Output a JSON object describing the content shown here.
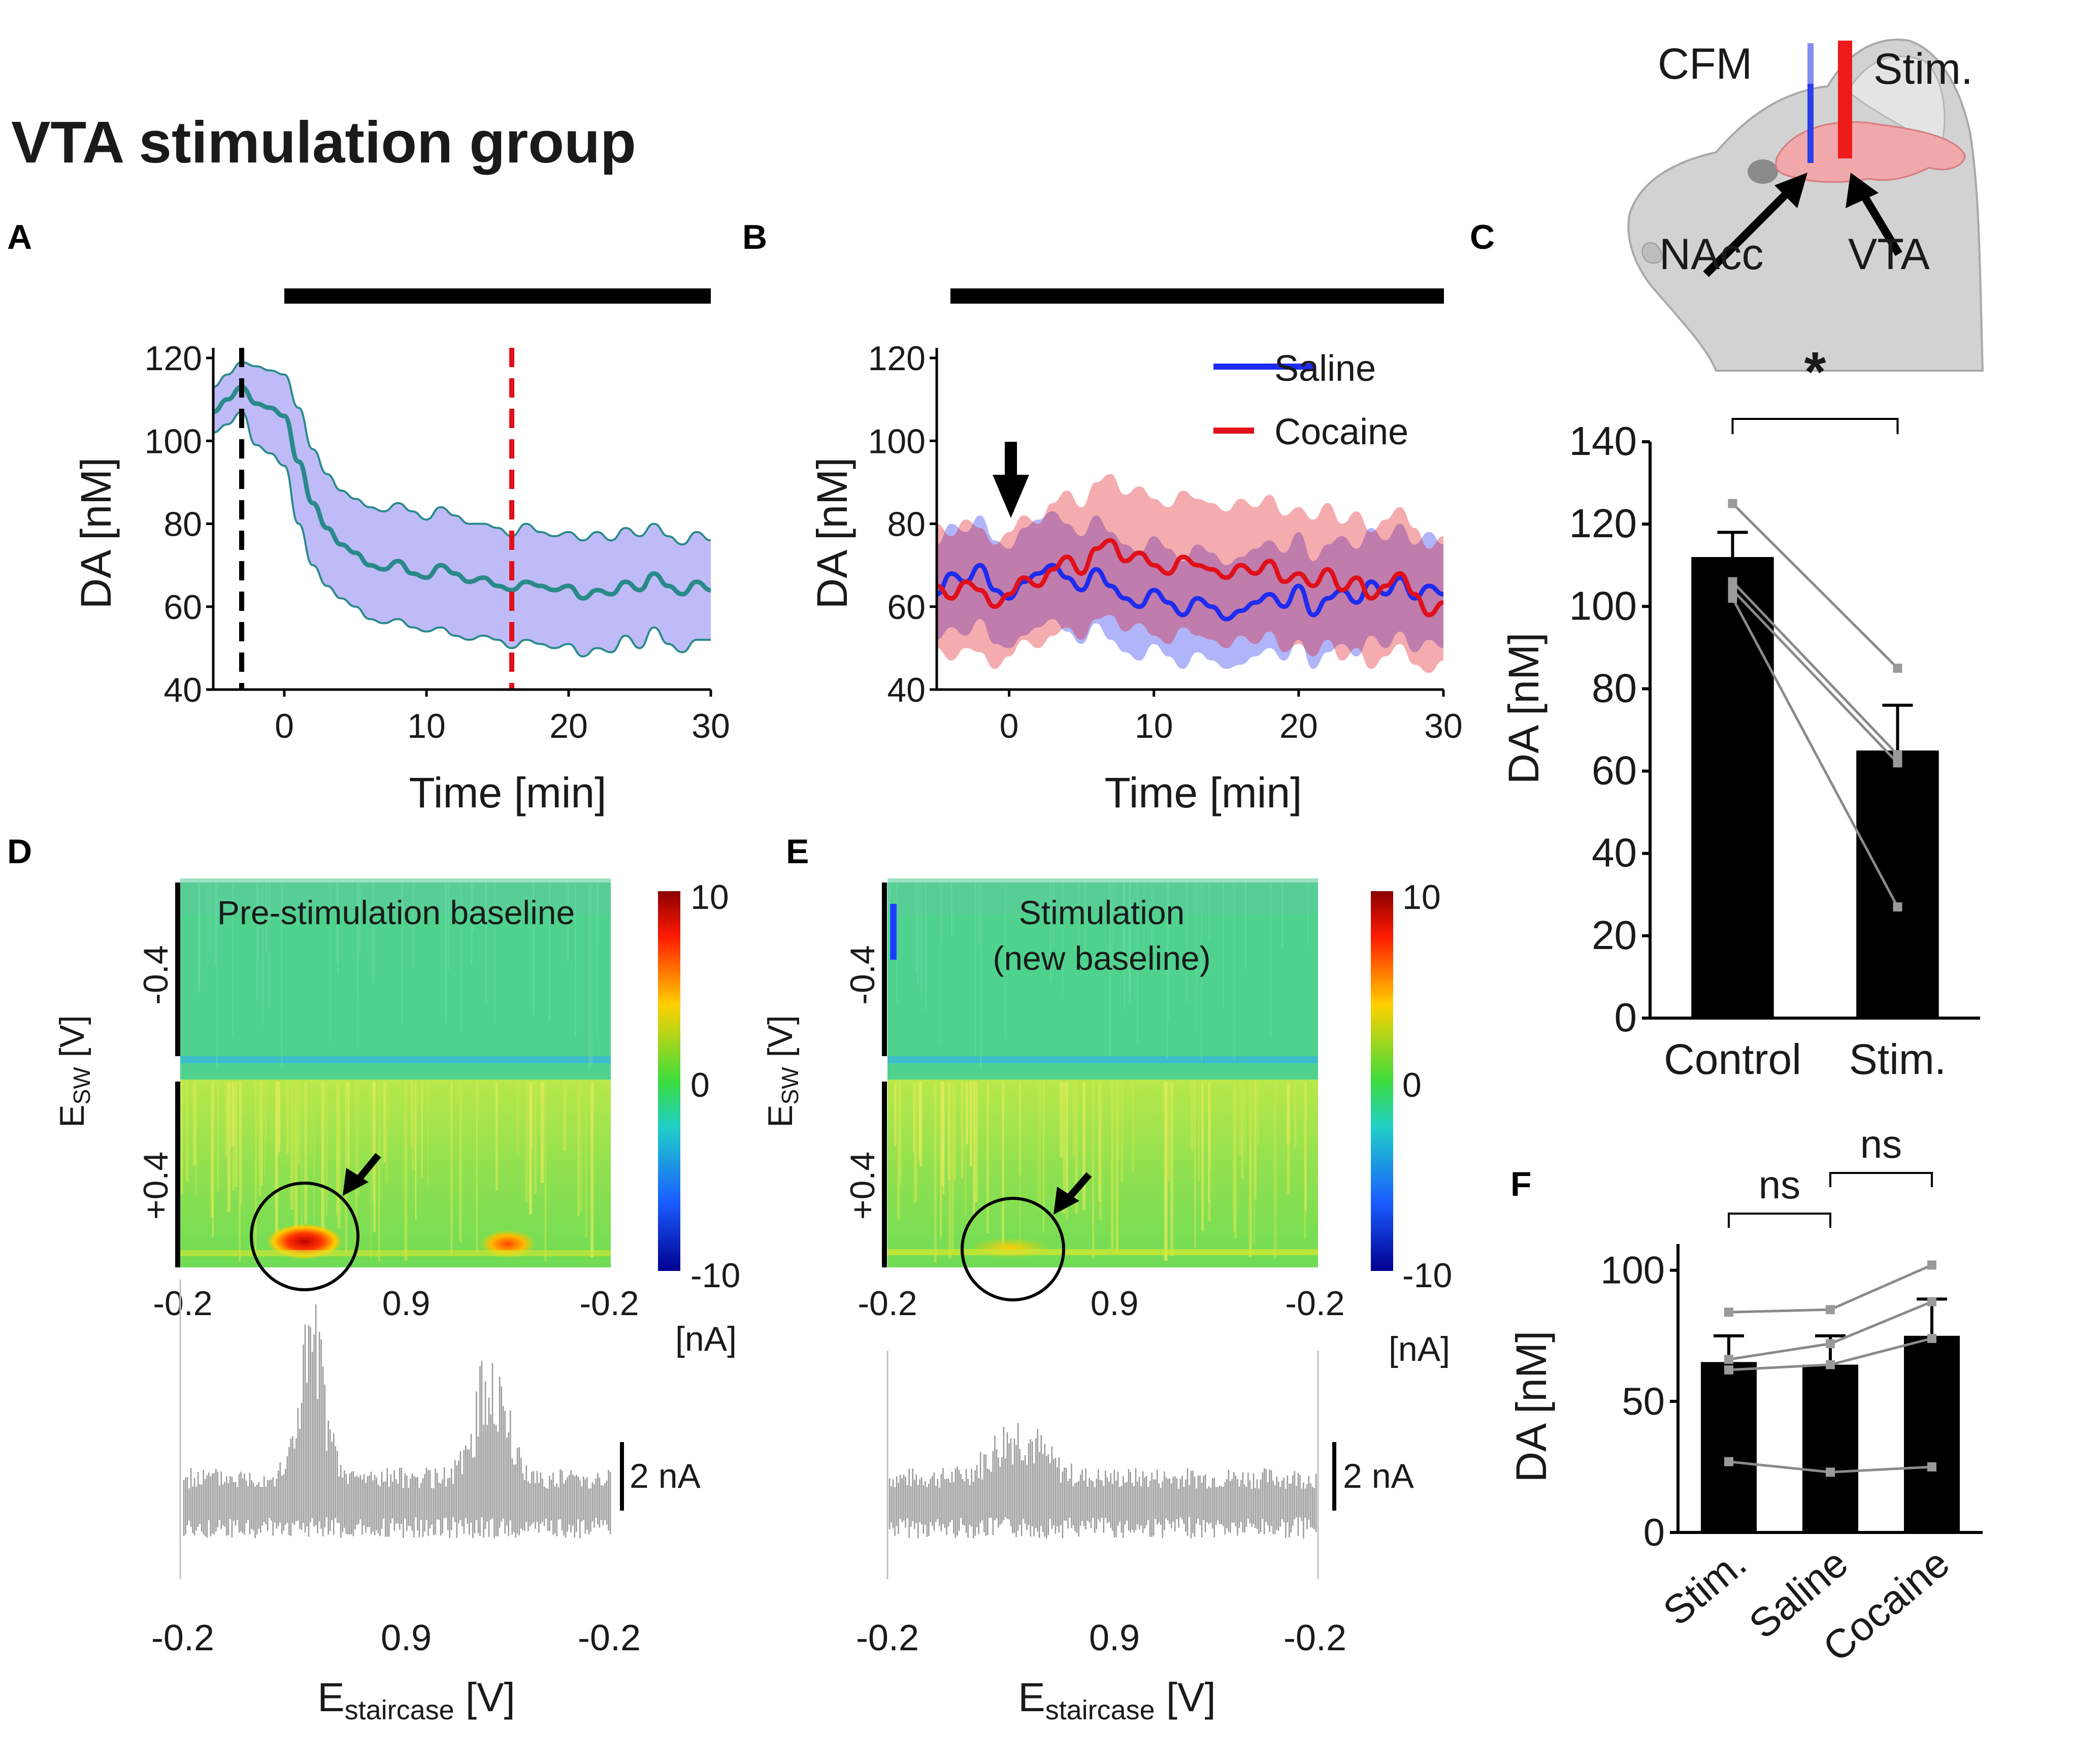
{
  "figure": {
    "title": "VTA stimulation group",
    "colors": {
      "teal": "#2a8a8a",
      "purple_fill": "#a9a4f5",
      "blue": "#1e2cf0",
      "red": "#e0101a",
      "black": "#000000",
      "grey": "#9a9a9a"
    }
  },
  "schematic": {
    "label_cfm": "CFM",
    "label_stim": "Stim.",
    "label_nacc": "NAcc",
    "label_vta": "VTA"
  },
  "panels": {
    "A": "A",
    "B": "B",
    "C": "C",
    "D": "D",
    "E": "E",
    "F": "F"
  },
  "chart_data": [
    {
      "panel": "A",
      "type": "line",
      "xlabel": "Time [min]",
      "ylabel": "DA [nM]",
      "xlim": [
        -5,
        30
      ],
      "ylim": [
        40,
        120
      ],
      "xticks": [
        0,
        10,
        20,
        30
      ],
      "yticks": [
        40,
        60,
        80,
        100,
        120
      ],
      "vlines": [
        {
          "x": -3,
          "color": "#000000",
          "style": "dashed"
        },
        {
          "x": 16,
          "color": "#e0101a",
          "style": "dashed"
        }
      ],
      "bar_line": "stimulation period (black bar from 0 to 30 min)",
      "series": [
        {
          "name": "mean",
          "color": "#2a8a8a",
          "x": [
            -5,
            -4,
            -3,
            -2,
            -1,
            0,
            1,
            2,
            3,
            4,
            5,
            6,
            7,
            8,
            9,
            10,
            11,
            12,
            13,
            14,
            15,
            16,
            17,
            18,
            19,
            20,
            21,
            22,
            23,
            24,
            25,
            26,
            27,
            28,
            29,
            30
          ],
          "values": [
            107,
            110,
            113,
            109,
            108,
            106,
            95,
            85,
            79,
            75,
            73,
            70,
            69,
            71,
            68,
            67,
            70,
            68,
            66,
            67,
            65,
            64,
            66,
            65,
            64,
            65,
            62,
            64,
            63,
            66,
            64,
            68,
            65,
            63,
            66,
            64
          ],
          "lower": [
            102,
            104,
            107,
            99,
            97,
            94,
            80,
            70,
            65,
            62,
            60,
            57,
            56,
            57,
            55,
            54,
            55,
            53,
            52,
            53,
            52,
            50,
            52,
            51,
            50,
            51,
            48,
            50,
            49,
            53,
            50,
            55,
            51,
            49,
            52,
            52
          ],
          "upper": [
            113,
            116,
            119,
            118,
            117,
            116,
            108,
            98,
            92,
            88,
            86,
            84,
            83,
            85,
            83,
            81,
            84,
            82,
            80,
            80,
            79,
            77,
            80,
            78,
            77,
            78,
            76,
            78,
            76,
            79,
            77,
            80,
            77,
            75,
            78,
            76
          ]
        }
      ]
    },
    {
      "panel": "B",
      "type": "line",
      "xlabel": "Time [min]",
      "ylabel": "DA [nM]",
      "xlim": [
        -5,
        30
      ],
      "ylim": [
        40,
        120
      ],
      "xticks": [
        0,
        10,
        20,
        30
      ],
      "yticks": [
        40,
        60,
        80,
        100,
        120
      ],
      "arrow_at_x": -0.5,
      "bar_line": "injection period (black bar from -5 to 30 min)",
      "legend": [
        "Saline",
        "Cocaine"
      ],
      "series": [
        {
          "name": "Saline",
          "color": "#1e2cf0",
          "x": [
            -5,
            -4,
            -3,
            -2,
            -1,
            0,
            1,
            2,
            3,
            4,
            5,
            6,
            7,
            8,
            9,
            10,
            11,
            12,
            13,
            14,
            15,
            16,
            17,
            18,
            19,
            20,
            21,
            22,
            23,
            24,
            25,
            26,
            27,
            28,
            29,
            30
          ],
          "values": [
            63,
            68,
            66,
            70,
            64,
            62,
            66,
            68,
            70,
            67,
            64,
            69,
            65,
            62,
            60,
            64,
            61,
            58,
            62,
            60,
            57,
            59,
            61,
            63,
            60,
            65,
            58,
            62,
            64,
            61,
            66,
            63,
            67,
            62,
            65,
            63
          ],
          "lower": [
            52,
            55,
            53,
            57,
            51,
            50,
            53,
            55,
            57,
            54,
            51,
            56,
            52,
            49,
            47,
            51,
            48,
            45,
            49,
            47,
            45,
            46,
            48,
            50,
            47,
            52,
            45,
            49,
            51,
            48,
            53,
            50,
            54,
            49,
            52,
            50
          ],
          "upper": [
            75,
            80,
            78,
            82,
            76,
            74,
            79,
            81,
            83,
            80,
            77,
            82,
            78,
            75,
            73,
            77,
            74,
            71,
            75,
            73,
            70,
            72,
            74,
            76,
            73,
            78,
            71,
            75,
            77,
            74,
            79,
            76,
            80,
            75,
            78,
            75
          ]
        },
        {
          "name": "Cocaine",
          "color": "#e0101a",
          "x": [
            -5,
            -4,
            -3,
            -2,
            -1,
            0,
            1,
            2,
            3,
            4,
            5,
            6,
            7,
            8,
            9,
            10,
            11,
            12,
            13,
            14,
            15,
            16,
            17,
            18,
            19,
            20,
            21,
            22,
            23,
            24,
            25,
            26,
            27,
            28,
            29,
            30
          ],
          "values": [
            65,
            62,
            66,
            64,
            60,
            63,
            67,
            65,
            69,
            72,
            68,
            74,
            76,
            71,
            73,
            70,
            68,
            72,
            70,
            69,
            67,
            70,
            68,
            71,
            66,
            68,
            65,
            69,
            64,
            67,
            62,
            65,
            68,
            63,
            58,
            61
          ],
          "lower": [
            50,
            47,
            50,
            49,
            45,
            48,
            52,
            50,
            53,
            55,
            52,
            57,
            58,
            54,
            56,
            53,
            51,
            55,
            53,
            52,
            50,
            53,
            51,
            54,
            49,
            51,
            48,
            52,
            47,
            50,
            45,
            48,
            51,
            46,
            44,
            47
          ],
          "upper": [
            80,
            77,
            81,
            79,
            75,
            78,
            82,
            80,
            85,
            88,
            84,
            90,
            92,
            87,
            89,
            86,
            84,
            88,
            86,
            85,
            83,
            86,
            84,
            87,
            82,
            84,
            81,
            85,
            80,
            83,
            78,
            81,
            84,
            79,
            74,
            77
          ]
        }
      ]
    },
    {
      "panel": "C",
      "type": "bar",
      "ylabel": "DA [nM]",
      "categories": [
        "Control",
        "Stim."
      ],
      "values": [
        112,
        65
      ],
      "errors": [
        6,
        11
      ],
      "ylim": [
        0,
        140
      ],
      "yticks": [
        0,
        20,
        40,
        60,
        80,
        100,
        120,
        140
      ],
      "significance": "*",
      "paired_points": [
        [
          125,
          85
        ],
        [
          106,
          64
        ],
        [
          104,
          62
        ],
        [
          102,
          27
        ]
      ]
    },
    {
      "panel": "F",
      "type": "bar",
      "ylabel": "DA [nM]",
      "categories": [
        "Stim.",
        "Saline",
        "Cocaine"
      ],
      "values": [
        65,
        64,
        75
      ],
      "errors": [
        10,
        11,
        14
      ],
      "ylim": [
        0,
        110
      ],
      "yticks": [
        0,
        50,
        100
      ],
      "significance": [
        "ns",
        "ns"
      ],
      "paired_points": [
        [
          84,
          85,
          102
        ],
        [
          66,
          72,
          88
        ],
        [
          62,
          64,
          74
        ],
        [
          27,
          23,
          25
        ]
      ]
    },
    {
      "panel": "D",
      "type": "heatmap",
      "title": "Pre-stimulation baseline",
      "xlabel": "E",
      "xlabel_sub": "staircase",
      "xlabel_unit": " [V]",
      "ylabel": "E",
      "ylabel_sub": "SW",
      "ylabel_unit": " [V]",
      "xticks": [
        "-0.2",
        "0.9",
        "-0.2"
      ],
      "yticks": [
        "-0.4",
        "+0.4"
      ],
      "colorbar_ticks": [
        "10",
        "0",
        "-10"
      ],
      "colorbar_unit": "[nA]",
      "clim": [
        -10,
        10
      ],
      "trace_scale": "2 nA"
    },
    {
      "panel": "E",
      "type": "heatmap",
      "title": "Stimulation",
      "subtitle": "(new baseline)",
      "xlabel": "E",
      "xlabel_sub": "staircase",
      "xlabel_unit": " [V]",
      "ylabel": "E",
      "ylabel_sub": "SW",
      "ylabel_unit": " [V]",
      "xticks": [
        "-0.2",
        "0.9",
        "-0.2"
      ],
      "yticks": [
        "-0.4",
        "+0.4"
      ],
      "colorbar_ticks": [
        "10",
        "0",
        "-10"
      ],
      "colorbar_unit": "[nA]",
      "clim": [
        -10,
        10
      ],
      "trace_scale": "2 nA"
    }
  ]
}
